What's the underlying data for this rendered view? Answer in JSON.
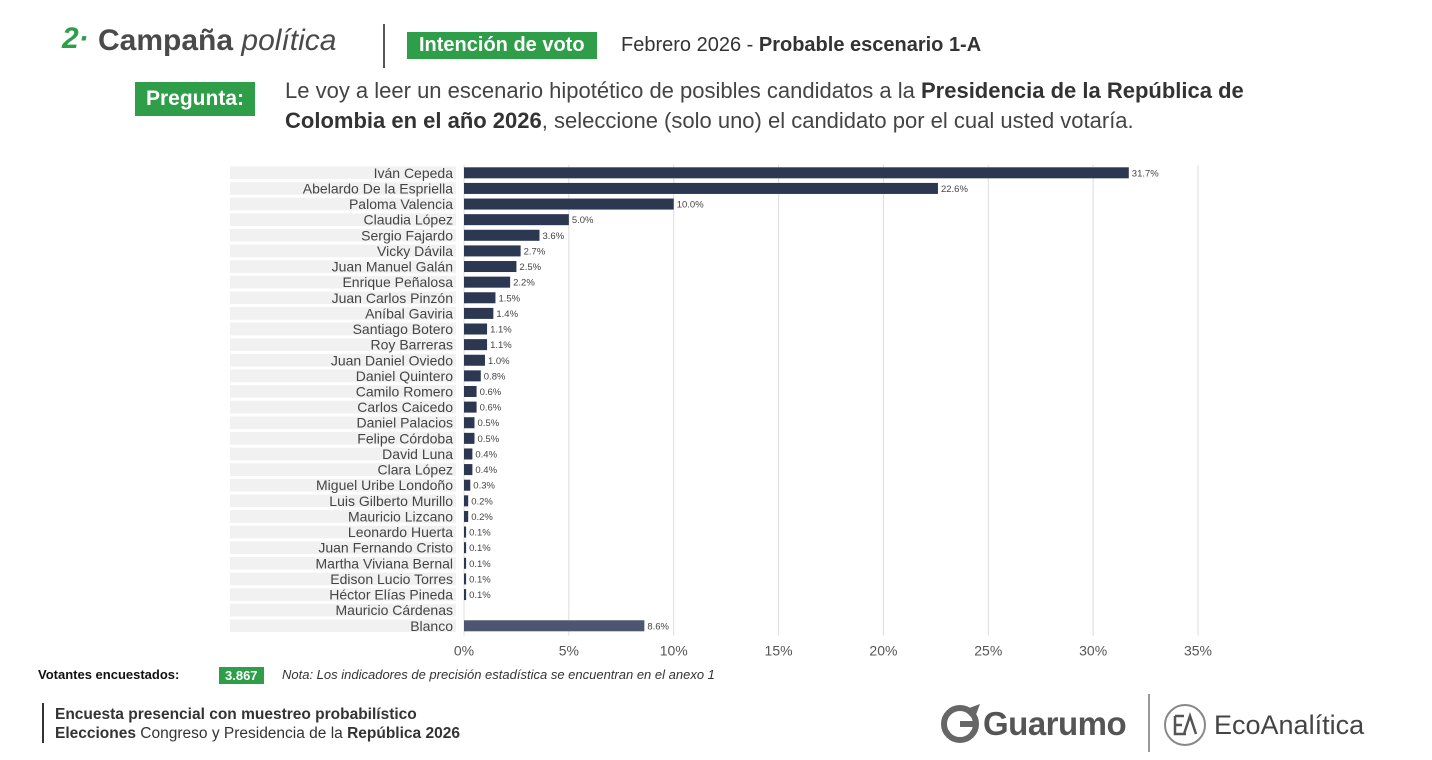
{
  "header": {
    "section_number": "2·",
    "section_title_bold": "Campaña",
    "section_title_italic": "política",
    "badge": "Intención de voto",
    "date": "Febrero 2026 - ",
    "scenario": "Probable escenario 1-A"
  },
  "question": {
    "badge": "Pregunta:",
    "text_1": "Le voy a leer un escenario hipotético de posibles candidatos a la ",
    "text_bold": "Presidencia de la República de Colombia en el año 2026",
    "text_2": ", seleccione (solo uno) el candidato por el cual usted votaría."
  },
  "chart_data": {
    "type": "bar",
    "orientation": "horizontal",
    "categories": [
      "Iván Cepeda",
      "Abelardo De la Espriella",
      "Paloma Valencia",
      "Claudia López",
      "Sergio Fajardo",
      "Vicky Dávila",
      "Juan Manuel Galán",
      "Enrique Peñalosa",
      "Juan Carlos Pinzón",
      "Aníbal Gaviria",
      "Santiago Botero",
      "Roy Barreras",
      "Juan Daniel Oviedo",
      "Daniel Quintero",
      "Camilo Romero",
      "Carlos Caicedo",
      "Daniel Palacios",
      "Felipe Córdoba",
      "David Luna",
      "Clara López",
      "Miguel Uribe Londoño",
      "Luis Gilberto Murillo",
      "Mauricio Lizcano",
      "Leonardo Huerta",
      "Juan Fernando Cristo",
      "Martha Viviana Bernal",
      "Edison Lucio Torres",
      "Héctor Elías Pineda",
      "Mauricio Cárdenas",
      "Blanco"
    ],
    "values": [
      31.7,
      22.6,
      10.0,
      5.0,
      3.6,
      2.7,
      2.5,
      2.2,
      1.5,
      1.4,
      1.1,
      1.1,
      1.0,
      0.8,
      0.6,
      0.6,
      0.5,
      0.5,
      0.4,
      0.4,
      0.3,
      0.2,
      0.2,
      0.1,
      0.1,
      0.1,
      0.1,
      0.1,
      null,
      8.6
    ],
    "value_labels": [
      "31.7%",
      "22.6%",
      "10.0%",
      "5.0%",
      "3.6%",
      "2.7%",
      "2.5%",
      "2.2%",
      "1.5%",
      "1.4%",
      "1.1%",
      "1.1%",
      "1.0%",
      "0.8%",
      "0.6%",
      "0.6%",
      "0.5%",
      "0.5%",
      "0.4%",
      "0.4%",
      "0.3%",
      "0.2%",
      "0.2%",
      "0.1%",
      "0.1%",
      "0.1%",
      "0.1%",
      "0.1%",
      "",
      "8.6%"
    ],
    "xlim": [
      0,
      35
    ],
    "xticks": [
      "0%",
      "5%",
      "10%",
      "15%",
      "20%",
      "25%",
      "30%",
      "35%"
    ],
    "grid": true,
    "colors": {
      "bar": "#2c3752",
      "blanco": "#4d5670",
      "band": "#f2f1f1",
      "grid": "#dddddd"
    }
  },
  "footer": {
    "voters_label": "Votantes encuestados:",
    "voters_value": "3.867",
    "note": "Nota: Los indicadores de precisión estadística se encuentran en el anexo 1",
    "line1": "Encuesta presencial con muestreo probabilístico",
    "line2_bold_a": "Elecciones",
    "line2_mid": " Congreso y Presidencia de la ",
    "line2_bold_b": "República 2026"
  },
  "logos": {
    "guarumo": "Guarumo",
    "ecoanalitica": "EcoAnalítica",
    "guarumo_icon": "guarumo-g-icon",
    "eco_icon": "ecoanalitica-ea-icon"
  },
  "colors": {
    "green": "#2e9e48"
  }
}
